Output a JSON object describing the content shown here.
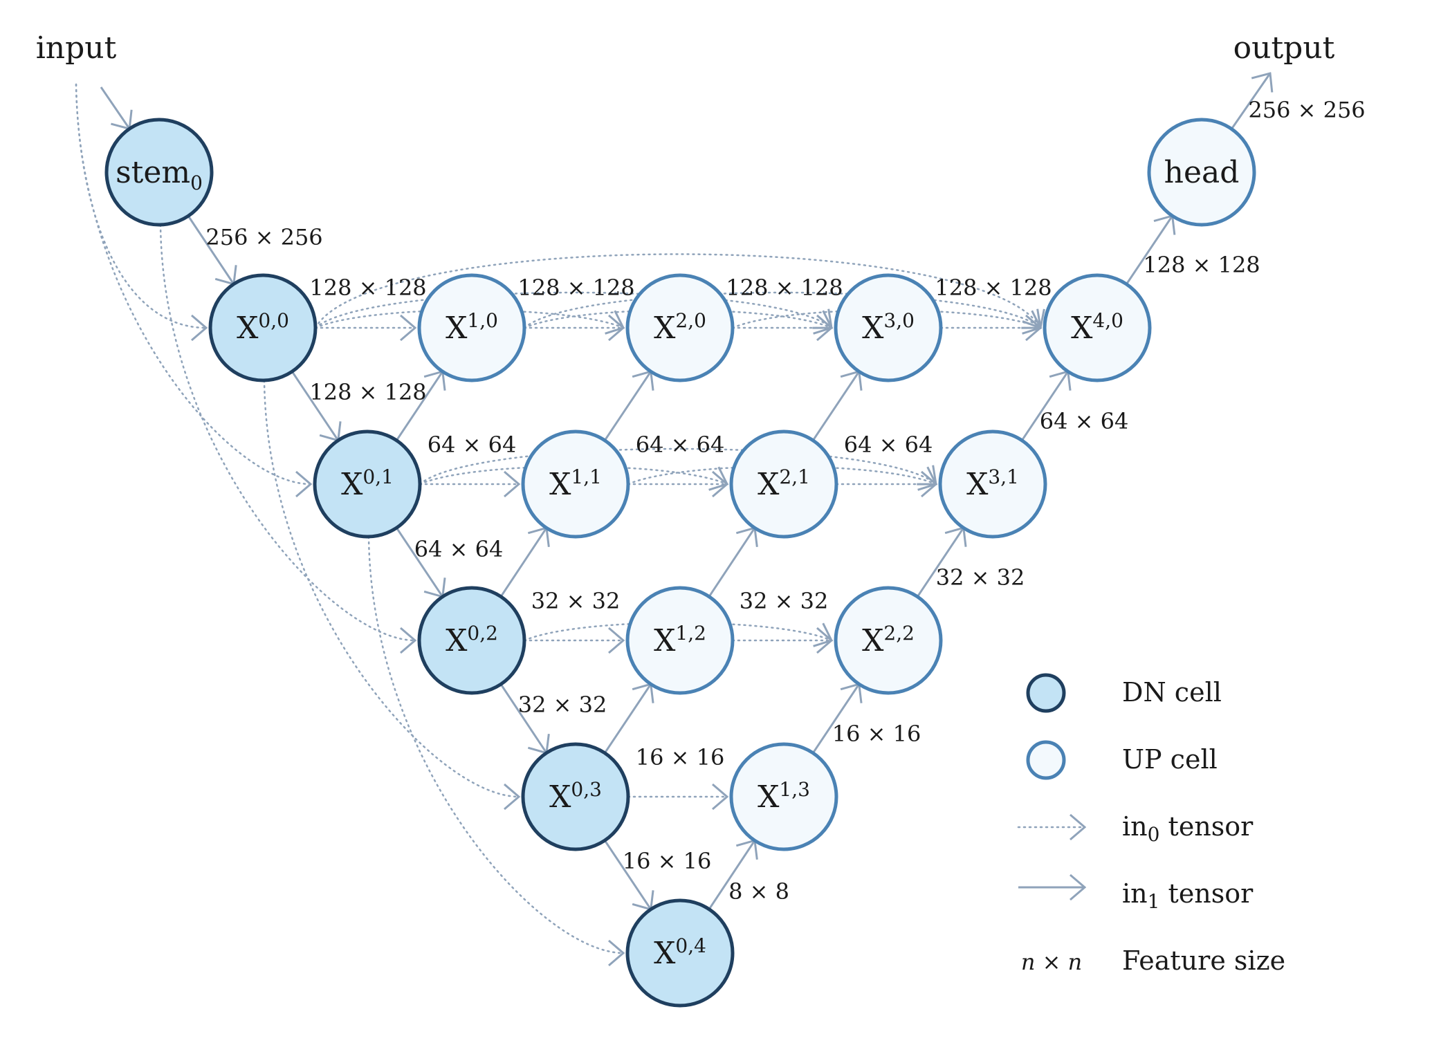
{
  "colors": {
    "dn_fill": "#c3e3f5",
    "dn_stroke": "#1f3f5f",
    "up_fill": "#f3f9fd",
    "up_stroke": "#4a82b4",
    "edge": "#8fa3ba",
    "text": "#1a1a1a"
  },
  "labels": {
    "input": "input",
    "output": "output"
  },
  "nodes": [
    {
      "id": "stem",
      "base": "stem",
      "sub": "0",
      "sup": "",
      "kind": "DN"
    },
    {
      "id": "X00",
      "base": "X",
      "sup": "0,0",
      "sub": "",
      "kind": "DN"
    },
    {
      "id": "X01",
      "base": "X",
      "sup": "0,1",
      "sub": "",
      "kind": "DN"
    },
    {
      "id": "X02",
      "base": "X",
      "sup": "0,2",
      "sub": "",
      "kind": "DN"
    },
    {
      "id": "X03",
      "base": "X",
      "sup": "0,3",
      "sub": "",
      "kind": "DN"
    },
    {
      "id": "X04",
      "base": "X",
      "sup": "0,4",
      "sub": "",
      "kind": "DN"
    },
    {
      "id": "X10",
      "base": "X",
      "sup": "1,0",
      "sub": "",
      "kind": "UP"
    },
    {
      "id": "X11",
      "base": "X",
      "sup": "1,1",
      "sub": "",
      "kind": "UP"
    },
    {
      "id": "X12",
      "base": "X",
      "sup": "1,2",
      "sub": "",
      "kind": "UP"
    },
    {
      "id": "X13",
      "base": "X",
      "sup": "1,3",
      "sub": "",
      "kind": "UP"
    },
    {
      "id": "X20",
      "base": "X",
      "sup": "2,0",
      "sub": "",
      "kind": "UP"
    },
    {
      "id": "X21",
      "base": "X",
      "sup": "2,1",
      "sub": "",
      "kind": "UP"
    },
    {
      "id": "X22",
      "base": "X",
      "sup": "2,2",
      "sub": "",
      "kind": "UP"
    },
    {
      "id": "X30",
      "base": "X",
      "sup": "3,0",
      "sub": "",
      "kind": "UP"
    },
    {
      "id": "X31",
      "base": "X",
      "sup": "3,1",
      "sub": "",
      "kind": "UP"
    },
    {
      "id": "X40",
      "base": "X",
      "sup": "4,0",
      "sub": "",
      "kind": "UP"
    },
    {
      "id": "head",
      "base": "head",
      "sup": "",
      "sub": "",
      "kind": "UP"
    }
  ],
  "edges_in1": [
    {
      "from": "input",
      "to": "stem"
    },
    {
      "from": "stem",
      "to": "X00"
    },
    {
      "from": "X00",
      "to": "X01"
    },
    {
      "from": "X01",
      "to": "X02"
    },
    {
      "from": "X02",
      "to": "X03"
    },
    {
      "from": "X03",
      "to": "X04"
    },
    {
      "from": "X01",
      "to": "X10"
    },
    {
      "from": "X02",
      "to": "X11"
    },
    {
      "from": "X03",
      "to": "X12"
    },
    {
      "from": "X04",
      "to": "X13"
    },
    {
      "from": "X11",
      "to": "X20"
    },
    {
      "from": "X12",
      "to": "X21"
    },
    {
      "from": "X13",
      "to": "X22"
    },
    {
      "from": "X21",
      "to": "X30"
    },
    {
      "from": "X22",
      "to": "X31"
    },
    {
      "from": "X31",
      "to": "X40"
    },
    {
      "from": "X40",
      "to": "head"
    },
    {
      "from": "head",
      "to": "output"
    }
  ],
  "edges_in0": [
    {
      "from": "input",
      "to": "X00"
    },
    {
      "from": "input",
      "to": "X01"
    },
    {
      "from": "stem",
      "to": "X02"
    },
    {
      "from": "X00",
      "to": "X03"
    },
    {
      "from": "X01",
      "to": "X04"
    },
    {
      "from": "X00",
      "to": "X10"
    },
    {
      "from": "X10",
      "to": "X20"
    },
    {
      "from": "X00",
      "to": "X20"
    },
    {
      "from": "X20",
      "to": "X30"
    },
    {
      "from": "X10",
      "to": "X30"
    },
    {
      "from": "X00",
      "to": "X30"
    },
    {
      "from": "X30",
      "to": "X40"
    },
    {
      "from": "X20",
      "to": "X40"
    },
    {
      "from": "X10",
      "to": "X40"
    },
    {
      "from": "X00",
      "to": "X40"
    },
    {
      "from": "X01",
      "to": "X11"
    },
    {
      "from": "X11",
      "to": "X21"
    },
    {
      "from": "X01",
      "to": "X21"
    },
    {
      "from": "X21",
      "to": "X31"
    },
    {
      "from": "X11",
      "to": "X31"
    },
    {
      "from": "X01",
      "to": "X31"
    },
    {
      "from": "X02",
      "to": "X12"
    },
    {
      "from": "X12",
      "to": "X22"
    },
    {
      "from": "X02",
      "to": "X22"
    },
    {
      "from": "X03",
      "to": "X13"
    }
  ],
  "size_labels": [
    {
      "id": "stem-out",
      "text": "256 × 256"
    },
    {
      "id": "row0-a",
      "text": "128 × 128"
    },
    {
      "id": "row0-b",
      "text": "128 × 128"
    },
    {
      "id": "row0-c",
      "text": "128 × 128"
    },
    {
      "id": "row0-d",
      "text": "128 × 128"
    },
    {
      "id": "x00-down",
      "text": "128 × 128"
    },
    {
      "id": "row1-a",
      "text": "64 × 64"
    },
    {
      "id": "row1-b",
      "text": "64 × 64"
    },
    {
      "id": "row1-c",
      "text": "64 × 64"
    },
    {
      "id": "x01-down",
      "text": "64 × 64"
    },
    {
      "id": "x31-up",
      "text": "64 × 64"
    },
    {
      "id": "row2-a",
      "text": "32 × 32"
    },
    {
      "id": "row2-b",
      "text": "32 × 32"
    },
    {
      "id": "x02-down",
      "text": "32 × 32"
    },
    {
      "id": "x22-up",
      "text": "32 × 32"
    },
    {
      "id": "row3-a",
      "text": "16 × 16"
    },
    {
      "id": "x03-down",
      "text": "16 × 16"
    },
    {
      "id": "x13-up",
      "text": "16 × 16"
    },
    {
      "id": "x04-up",
      "text": "8 × 8"
    },
    {
      "id": "x40-up",
      "text": "128 × 128"
    },
    {
      "id": "head-out",
      "text": "256 × 256"
    }
  ],
  "legend": {
    "dn": "DN cell",
    "up": "UP cell",
    "in0_base": "in",
    "in0_sub": "0",
    "in0_rest": " tensor",
    "in1_base": "in",
    "in1_sub": "1",
    "in1_rest": " tensor",
    "nxn": "n × n",
    "feature": "Feature size"
  }
}
